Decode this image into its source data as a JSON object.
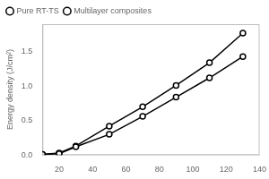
{
  "chart_data": {
    "type": "line",
    "x": [
      10,
      20,
      30,
      50,
      70,
      90,
      110,
      130
    ],
    "series": [
      {
        "name": "Pure RT-TS",
        "color": "#000000",
        "marker": "o",
        "values": [
          0.01,
          0.02,
          0.12,
          0.3,
          0.56,
          0.84,
          1.12,
          1.43
        ]
      },
      {
        "name": "Multilayer composites",
        "color": "#000000",
        "marker": "o",
        "values": [
          0.01,
          0.03,
          0.13,
          0.42,
          0.7,
          1.01,
          1.34,
          1.77
        ]
      }
    ],
    "ylabel": "Energy density (J/cm²)",
    "xlim": [
      10,
      140
    ],
    "ylim": [
      0.0,
      1.9
    ],
    "xticks": [
      20,
      40,
      60,
      80,
      100,
      120,
      140
    ],
    "yticks": [
      {
        "value": 0.0,
        "label": "0.0"
      },
      {
        "value": 0.5,
        "label": "0.5"
      },
      {
        "value": 1.0,
        "label": "1.0"
      },
      {
        "value": 1.5,
        "label": "1.5"
      }
    ],
    "grid": false,
    "legend": "upper left"
  }
}
